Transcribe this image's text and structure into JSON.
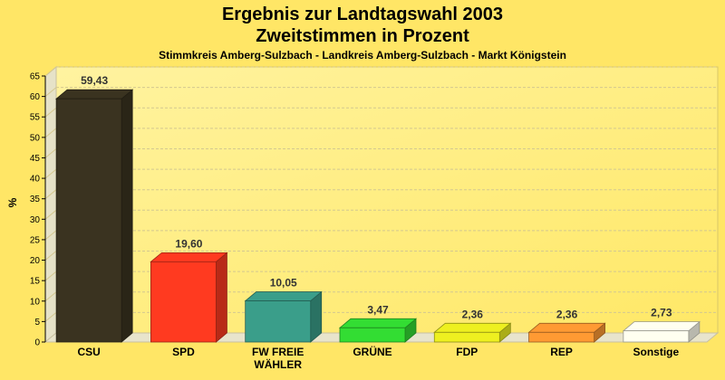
{
  "chart_data": {
    "type": "bar",
    "title_line1": "Ergebnis zur Landtagswahl 2003",
    "title_line2": "Zweitstimmen in Prozent",
    "subtitle": "Stimmkreis Amberg-Sulzbach - Landkreis Amberg-Sulzbach - Markt Königstein",
    "ylabel": "%",
    "ylim": [
      0,
      65
    ],
    "yticks": [
      0,
      5,
      10,
      15,
      20,
      25,
      30,
      35,
      40,
      45,
      50,
      55,
      60,
      65
    ],
    "grid": true,
    "categories": [
      "CSU",
      "SPD",
      "FW FREIE WÄHLER",
      "GRÜNE",
      "FDP",
      "REP",
      "Sonstige"
    ],
    "category_lines": [
      [
        "CSU"
      ],
      [
        "SPD"
      ],
      [
        "FW FREIE",
        "WÄHLER"
      ],
      [
        "GRÜNE"
      ],
      [
        "FDP"
      ],
      [
        "REP"
      ],
      [
        "Sonstige"
      ]
    ],
    "values": [
      59.43,
      19.6,
      10.05,
      3.47,
      2.36,
      2.36,
      2.73
    ],
    "value_labels": [
      "59,43",
      "19,60",
      "10,05",
      "3,47",
      "2,36",
      "2,36",
      "2,73"
    ],
    "colors": [
      "#3A3320",
      "#FF3A20",
      "#3A9E8A",
      "#33DD33",
      "#EEF020",
      "#FF9A33",
      "#FFFFF0"
    ]
  }
}
